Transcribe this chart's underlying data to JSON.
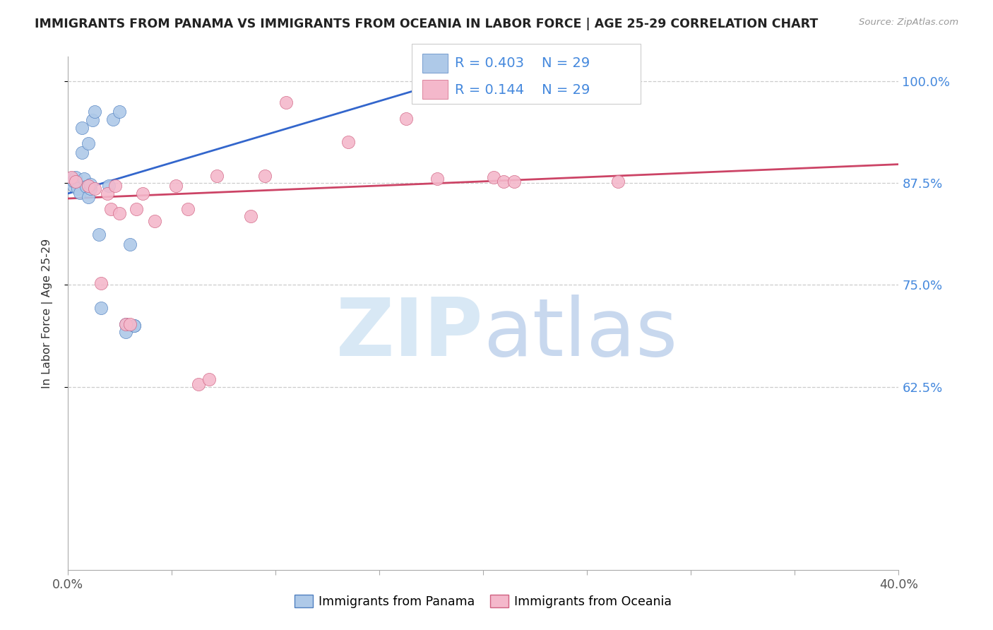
{
  "title": "IMMIGRANTS FROM PANAMA VS IMMIGRANTS FROM OCEANIA IN LABOR FORCE | AGE 25-29 CORRELATION CHART",
  "source": "Source: ZipAtlas.com",
  "ylabel": "In Labor Force | Age 25-29",
  "xlim": [
    0.0,
    0.4
  ],
  "ylim": [
    0.4,
    1.03
  ],
  "xtick_positions": [
    0.0,
    0.05,
    0.1,
    0.15,
    0.2,
    0.25,
    0.3,
    0.35,
    0.4
  ],
  "xtick_labels": [
    "0.0%",
    "",
    "",
    "",
    "",
    "",
    "",
    "",
    "40.0%"
  ],
  "ytick_positions": [
    0.625,
    0.75,
    0.875,
    1.0
  ],
  "ytick_labels": [
    "62.5%",
    "75.0%",
    "87.5%",
    "100.0%"
  ],
  "legend_R_blue": "0.403",
  "legend_N_blue": "29",
  "legend_R_pink": "0.144",
  "legend_N_pink": "29",
  "legend_label_blue": "Immigrants from Panama",
  "legend_label_pink": "Immigrants from Oceania",
  "blue_face_color": "#aec9e8",
  "pink_face_color": "#f4b8cb",
  "blue_edge_color": "#5080c0",
  "pink_edge_color": "#d06080",
  "blue_line_color": "#3366cc",
  "pink_line_color": "#cc4466",
  "right_axis_color": "#4488dd",
  "grid_color": "#cccccc",
  "watermark_color": "#d8e8f5",
  "blue_x": [
    0.001,
    0.002,
    0.003,
    0.003,
    0.004,
    0.005,
    0.005,
    0.006,
    0.007,
    0.007,
    0.008,
    0.009,
    0.01,
    0.01,
    0.011,
    0.011,
    0.012,
    0.013,
    0.015,
    0.016,
    0.02,
    0.022,
    0.025,
    0.028,
    0.028,
    0.03,
    0.032,
    0.032,
    0.18
  ],
  "blue_y": [
    0.878,
    0.881,
    0.872,
    0.878,
    0.882,
    0.873,
    0.868,
    0.863,
    0.912,
    0.943,
    0.88,
    0.871,
    0.858,
    0.924,
    0.868,
    0.873,
    0.952,
    0.963,
    0.812,
    0.722,
    0.872,
    0.953,
    0.963,
    0.702,
    0.692,
    0.8,
    0.7,
    0.7,
    1.0
  ],
  "pink_x": [
    0.002,
    0.004,
    0.01,
    0.013,
    0.016,
    0.019,
    0.021,
    0.023,
    0.025,
    0.028,
    0.03,
    0.033,
    0.036,
    0.042,
    0.052,
    0.058,
    0.063,
    0.068,
    0.072,
    0.088,
    0.095,
    0.105,
    0.135,
    0.163,
    0.178,
    0.205,
    0.21,
    0.215,
    0.265
  ],
  "pink_y": [
    0.882,
    0.877,
    0.872,
    0.868,
    0.752,
    0.862,
    0.843,
    0.872,
    0.838,
    0.702,
    0.702,
    0.843,
    0.862,
    0.828,
    0.872,
    0.843,
    0.628,
    0.634,
    0.884,
    0.834,
    0.884,
    0.974,
    0.925,
    0.954,
    0.88,
    0.882,
    0.877,
    0.877,
    0.877
  ],
  "blue_trend_x": [
    0.0,
    0.185
  ],
  "blue_trend_y": [
    0.862,
    1.002
  ],
  "pink_trend_x": [
    0.0,
    0.4
  ],
  "pink_trend_y": [
    0.856,
    0.898
  ]
}
